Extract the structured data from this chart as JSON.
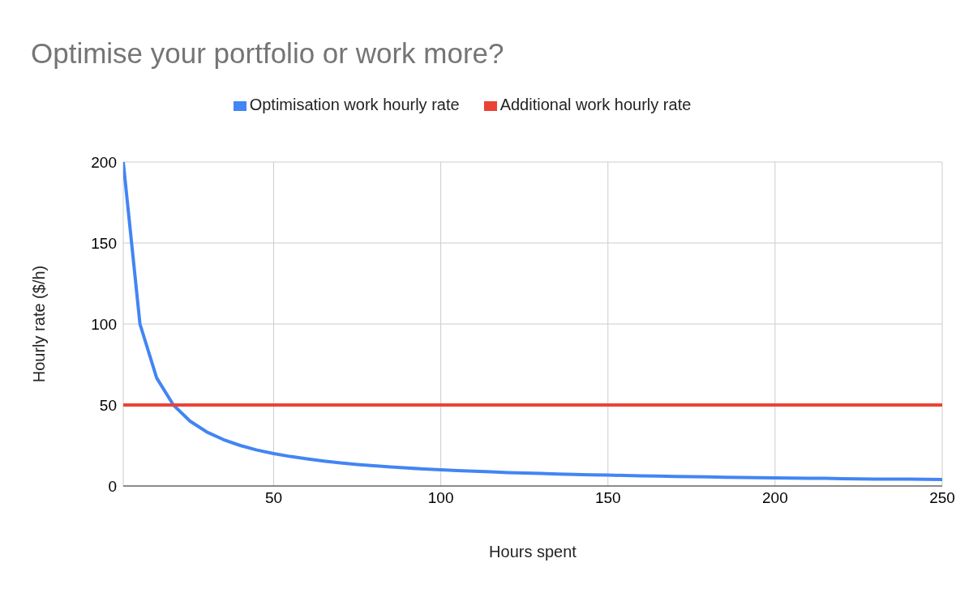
{
  "chart_data": {
    "type": "line",
    "title": "Optimise your portfolio or work more?",
    "xlabel": "Hours spent",
    "ylabel": "Hourly rate ($/h)",
    "x": [
      5,
      10,
      15,
      20,
      25,
      30,
      35,
      40,
      45,
      50,
      55,
      60,
      65,
      70,
      75,
      80,
      85,
      90,
      95,
      100,
      105,
      110,
      115,
      120,
      125,
      130,
      135,
      140,
      145,
      150,
      155,
      160,
      165,
      170,
      175,
      180,
      185,
      190,
      195,
      200,
      205,
      210,
      215,
      220,
      225,
      230,
      235,
      240,
      245,
      250
    ],
    "series": [
      {
        "name": "Optimisation work hourly rate",
        "color": "#4285f4",
        "values": [
          200,
          100,
          66.7,
          50,
          40,
          33.3,
          28.6,
          25,
          22.2,
          20,
          18.2,
          16.7,
          15.4,
          14.3,
          13.3,
          12.5,
          11.8,
          11.1,
          10.5,
          10,
          9.5,
          9.1,
          8.7,
          8.3,
          8,
          7.7,
          7.4,
          7.1,
          6.9,
          6.7,
          6.5,
          6.3,
          6.1,
          5.9,
          5.7,
          5.6,
          5.4,
          5.3,
          5.1,
          5,
          4.9,
          4.8,
          4.7,
          4.5,
          4.4,
          4.3,
          4.3,
          4.2,
          4.1,
          4
        ]
      },
      {
        "name": "Additional work hourly rate",
        "color": "#ea4335",
        "x": [
          5,
          250
        ],
        "values": [
          50,
          50
        ]
      }
    ],
    "xlim": [
      5,
      250
    ],
    "xticks": [
      50,
      100,
      150,
      200,
      250
    ],
    "ylim": [
      0,
      200
    ],
    "yticks": [
      0,
      50,
      100,
      150,
      200
    ],
    "grid": true,
    "legend": "top",
    "marker": "none",
    "line_style": "solid"
  }
}
